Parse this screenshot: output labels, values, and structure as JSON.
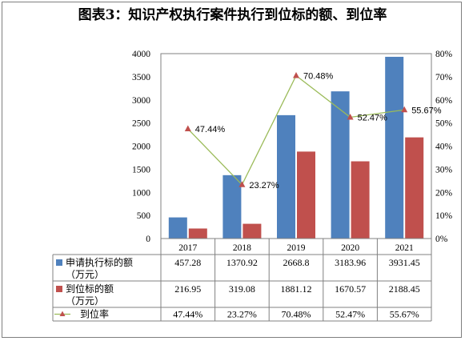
{
  "title": "图表3：知识产权执行案件执行到位标的额、到位率",
  "chart_data": {
    "type": "bar",
    "categories": [
      "2017",
      "2018",
      "2019",
      "2020",
      "2021"
    ],
    "series": [
      {
        "name": "申请执行标的额（万元）",
        "name_lines": [
          "申请执行标的额",
          "（万元）"
        ],
        "kind": "bar",
        "axis": "left",
        "color": "#4f81bd",
        "values": [
          457.28,
          1370.92,
          2668.8,
          3183.96,
          3931.45
        ],
        "labels": [
          "457.28",
          "1370.92",
          "2668.8",
          "3183.96",
          "3931.45"
        ]
      },
      {
        "name": "到位标的额（万元）",
        "name_lines": [
          "到位标的额",
          "（万元）"
        ],
        "kind": "bar",
        "axis": "left",
        "color": "#c0504d",
        "values": [
          216.95,
          319.08,
          1881.12,
          1670.57,
          2188.45
        ],
        "labels": [
          "216.95",
          "319.08",
          "1881.12",
          "1670.57",
          "2188.45"
        ]
      },
      {
        "name": "到位率",
        "name_lines": [
          "到位率"
        ],
        "kind": "line",
        "axis": "right",
        "color": "#9bbb59",
        "marker_color": "#c0504d",
        "values": [
          47.44,
          23.27,
          70.48,
          52.47,
          55.67
        ],
        "labels": [
          "47.44%",
          "23.27%",
          "70.48%",
          "52.47%",
          "55.67%"
        ]
      }
    ],
    "y_left": {
      "ylim": [
        0,
        4000
      ],
      "ticks": [
        "0",
        "500",
        "1000",
        "1500",
        "2000",
        "2500",
        "3000",
        "3500",
        "4000"
      ]
    },
    "y_right": {
      "ylim": [
        0,
        80
      ],
      "ticks": [
        "0%",
        "10%",
        "20%",
        "30%",
        "40%",
        "50%",
        "60%",
        "70%",
        "80%"
      ]
    },
    "point_labels": [
      "47.44%",
      "23.27%",
      "70.48%",
      "52.47%",
      "55.67%"
    ],
    "data_table": true,
    "grid": false
  }
}
